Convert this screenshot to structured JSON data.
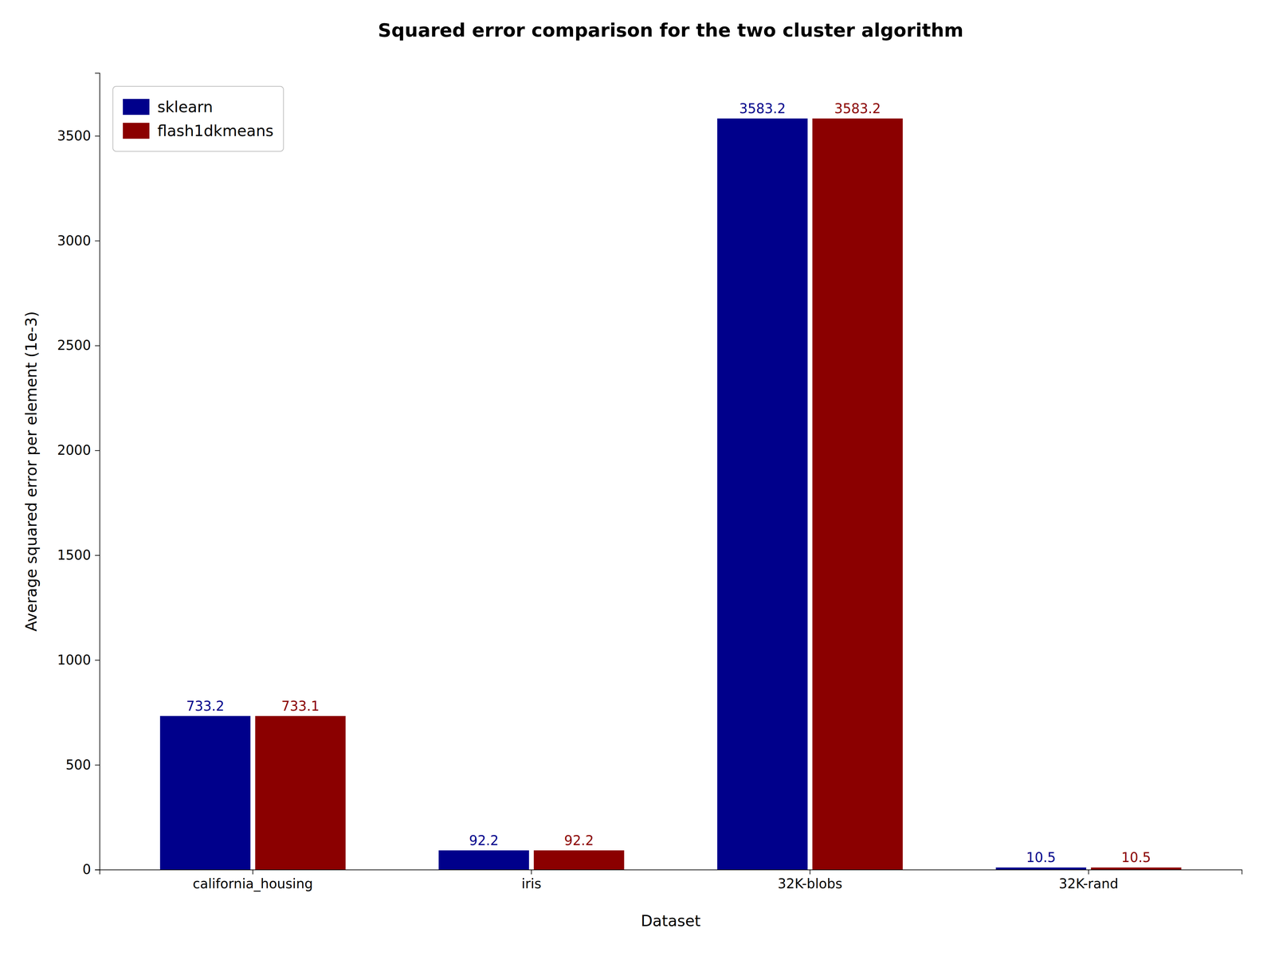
{
  "chart_data": {
    "type": "bar",
    "title": "Squared error comparison for the two cluster algorithm",
    "xlabel": "Dataset",
    "ylabel": "Average squared error per element (1e-3)",
    "categories": [
      "california_housing",
      "iris",
      "32K-blobs",
      "32K-rand"
    ],
    "series": [
      {
        "name": "sklearn",
        "color": "#00008B",
        "values": [
          733.2,
          92.2,
          3583.2,
          10.5
        ]
      },
      {
        "name": "flash1dkmeans",
        "color": "#8B0000",
        "values": [
          733.1,
          92.2,
          3583.2,
          10.5
        ]
      }
    ],
    "ylim": [
      0,
      3800
    ],
    "yticks": [
      0,
      500,
      1000,
      1500,
      2000,
      2500,
      3000,
      3500
    ],
    "grid": false,
    "legend": "upper left",
    "data_labels": true
  }
}
